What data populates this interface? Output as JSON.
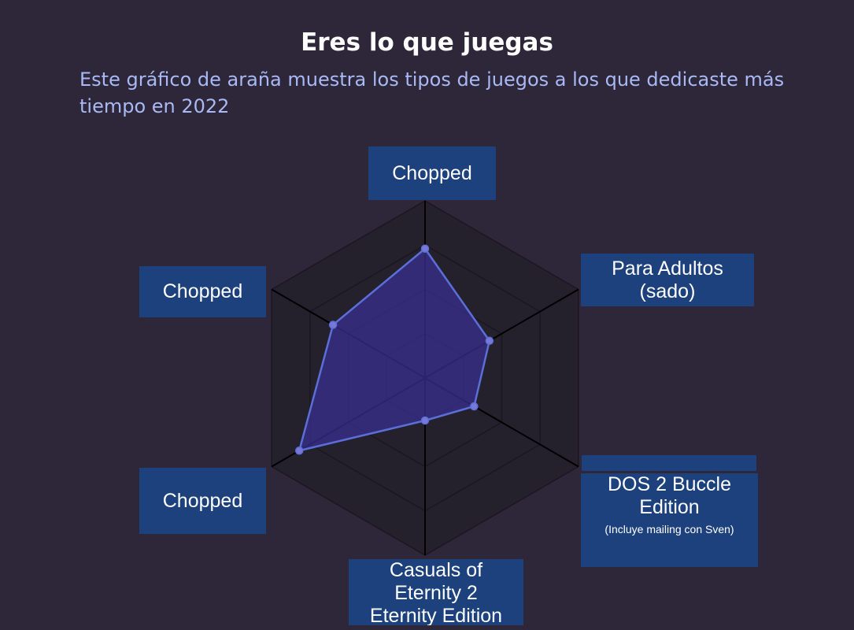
{
  "header": {
    "title": "Eres lo que juegas",
    "subtitle": "Este gráfico de araña muestra los tipos de juegos a los que dedicaste más tiempo en 2022"
  },
  "colors": {
    "background": "#2e2739",
    "subtitle": "#a9b9f5",
    "label_box": "#1c417d",
    "series_line": "#5a6fd8",
    "series_fill": "#3a2f8f",
    "web_fill": "#24202c",
    "axis_line": "#000000"
  },
  "chart_data": {
    "type": "radar",
    "axes": [
      {
        "label": "Chopped",
        "note": ""
      },
      {
        "label": "Para Adultos\n(sado)",
        "note": ""
      },
      {
        "label": "DOS 2 Buccle\nEdition",
        "note": "(Incluye mailing con Sven)"
      },
      {
        "label": "Casuals of\nEternity 2\nEternity Edition",
        "note": ""
      },
      {
        "label": "Chopped",
        "note": ""
      },
      {
        "label": "Chopped",
        "note": ""
      }
    ],
    "series": [
      {
        "values": [
          0.73,
          0.42,
          0.32,
          0.24,
          0.82,
          0.6
        ]
      }
    ],
    "range": [
      0,
      1
    ],
    "rings": 4,
    "grid": true,
    "legend": false
  }
}
